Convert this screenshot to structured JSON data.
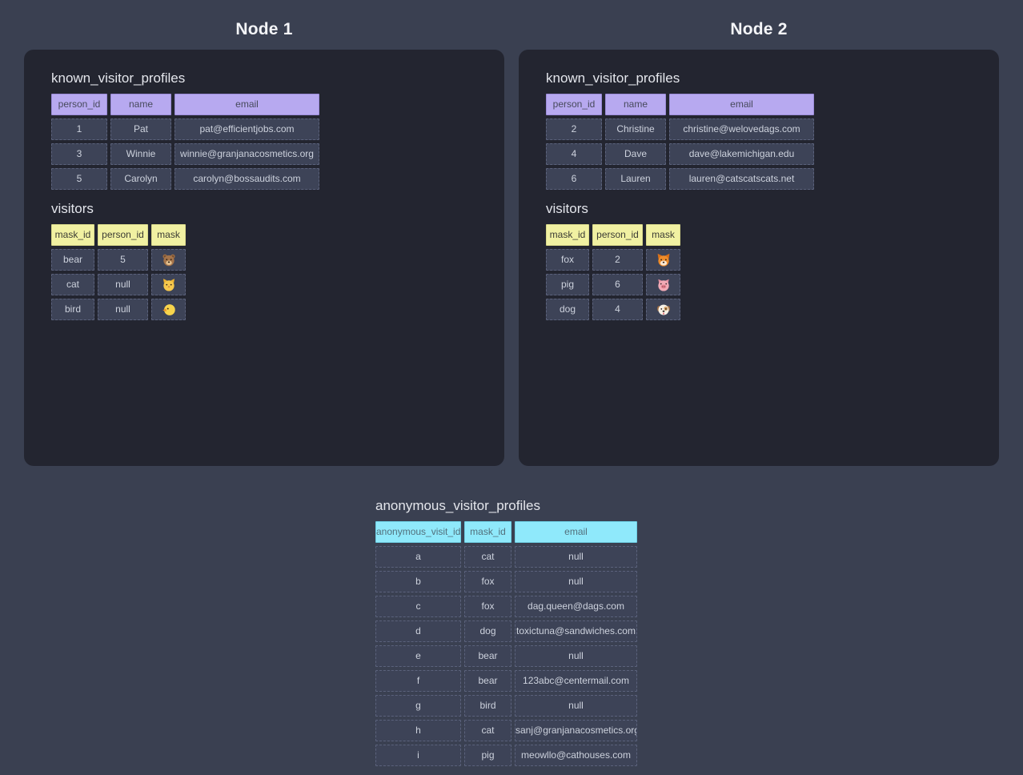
{
  "palette": {
    "page_bg": "#3a4051",
    "panel_bg": "#232530",
    "cell_bg": "#3d4357",
    "cell_border": "#5b627c",
    "cell_text": "#cdd2dd",
    "purple_header": "#b7a9f0",
    "yellow_header": "#f1f1a2",
    "cyan_header": "#8fe9fb",
    "title_text": "#e4e6ec",
    "node_title_text": "#f4f5f8"
  },
  "nodes": [
    {
      "title": "Node 1",
      "tables": [
        {
          "name": "known_visitor_profiles",
          "theme": "purple",
          "headers": [
            "person_id",
            "name",
            "email"
          ],
          "rows": [
            [
              "1",
              "Pat",
              "pat@efficientjobs.com"
            ],
            [
              "3",
              "Winnie",
              "winnie@granjanacosmetics.org"
            ],
            [
              "5",
              "Carolyn",
              "carolyn@bossaudits.com"
            ]
          ]
        },
        {
          "name": "visitors",
          "theme": "yellow",
          "headers": [
            "mask_id",
            "person_id",
            "mask"
          ],
          "mask_icons": [
            "bear",
            "cat",
            "bird"
          ],
          "rows": [
            [
              "bear",
              "5",
              "🐻"
            ],
            [
              "cat",
              "null",
              "🐱"
            ],
            [
              "bird",
              "null",
              "🐤"
            ]
          ]
        }
      ]
    },
    {
      "title": "Node 2",
      "tables": [
        {
          "name": "known_visitor_profiles",
          "theme": "purple",
          "headers": [
            "person_id",
            "name",
            "email"
          ],
          "rows": [
            [
              "2",
              "Christine",
              "christine@welovedags.com"
            ],
            [
              "4",
              "Dave",
              "dave@lakemichigan.edu"
            ],
            [
              "6",
              "Lauren",
              "lauren@catscatscats.net"
            ]
          ]
        },
        {
          "name": "visitors",
          "theme": "yellow",
          "headers": [
            "mask_id",
            "person_id",
            "mask"
          ],
          "mask_icons": [
            "fox",
            "pig",
            "dog"
          ],
          "rows": [
            [
              "fox",
              "2",
              "🦊"
            ],
            [
              "pig",
              "6",
              "🐷"
            ],
            [
              "dog",
              "4",
              "🐶"
            ]
          ]
        }
      ]
    }
  ],
  "anonymous_table": {
    "name": "anonymous_visitor_profiles",
    "theme": "cyan",
    "headers": [
      "anonymous_visit_id",
      "mask_id",
      "email"
    ],
    "rows": [
      [
        "a",
        "cat",
        "null"
      ],
      [
        "b",
        "fox",
        "null"
      ],
      [
        "c",
        "fox",
        "dag.queen@dags.com"
      ],
      [
        "d",
        "dog",
        "toxictuna@sandwiches.com"
      ],
      [
        "e",
        "bear",
        "null"
      ],
      [
        "f",
        "bear",
        "123abc@centermail.com"
      ],
      [
        "g",
        "bird",
        "null"
      ],
      [
        "h",
        "cat",
        "sanj@granjanacosmetics.org"
      ],
      [
        "i",
        "pig",
        "meowllo@cathouses.com"
      ]
    ]
  }
}
